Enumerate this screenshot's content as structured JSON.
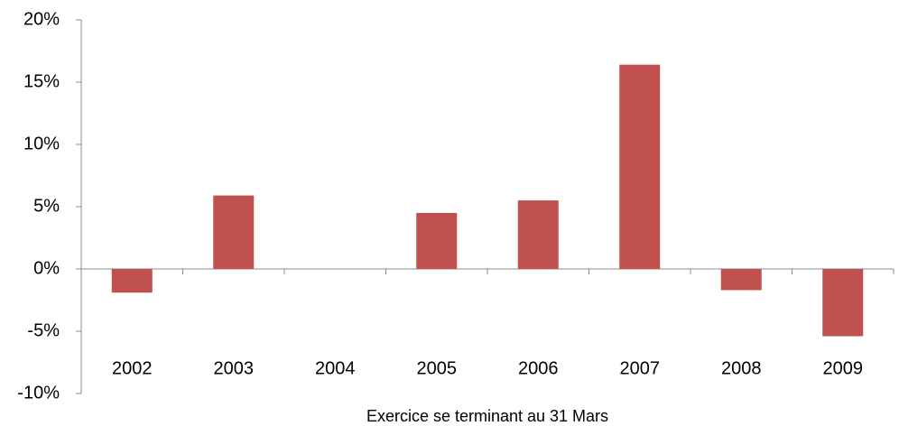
{
  "chart_data": {
    "type": "bar",
    "x_label": "Exercice se terminant au 31 Mars",
    "categories": [
      "2002",
      "2003",
      "2004",
      "2005",
      "2006",
      "2007",
      "2008",
      "2009"
    ],
    "values": [
      -1.9,
      5.9,
      0,
      4.5,
      5.5,
      16.4,
      -1.7,
      -5.4
    ],
    "color": "#c0504d",
    "ylim": [
      -10,
      20
    ],
    "yticks": [
      {
        "value": -10,
        "label": "-10%"
      },
      {
        "value": -5,
        "label": "-5%"
      },
      {
        "value": 0,
        "label": "0%"
      },
      {
        "value": 5,
        "label": "5%"
      },
      {
        "value": 10,
        "label": "10%"
      },
      {
        "value": 15,
        "label": "15%"
      },
      {
        "value": 20,
        "label": "20%"
      }
    ],
    "grid": false
  }
}
